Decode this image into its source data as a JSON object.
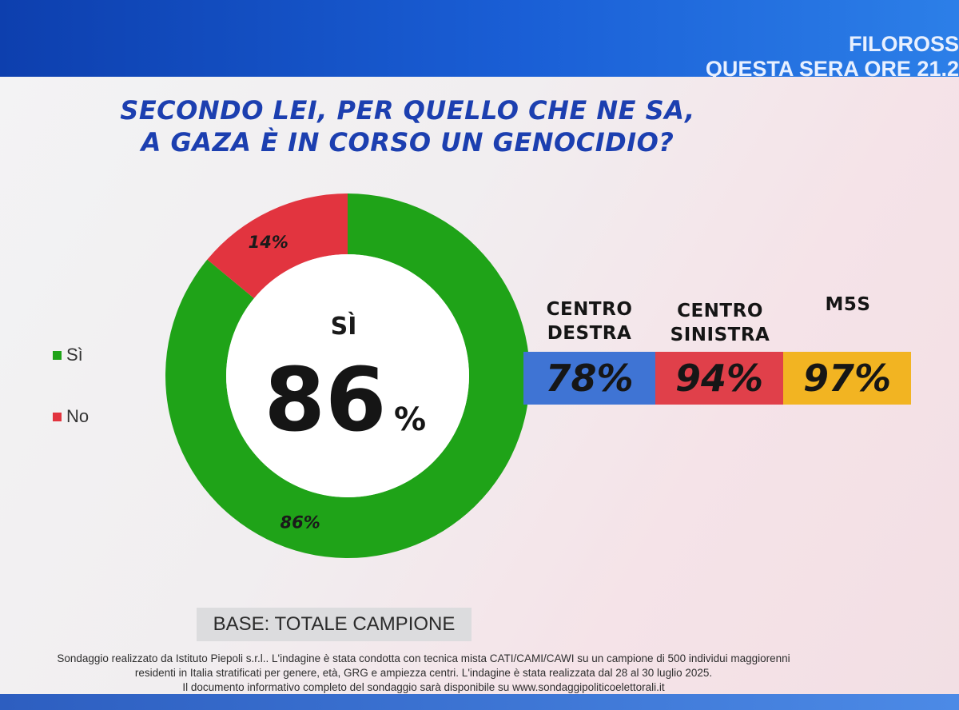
{
  "header": {
    "channel_line1": "FILOROSS",
    "channel_line2": "QUESTA SERA ORE 21.2"
  },
  "question": {
    "line1": "SECONDO LEI, PER QUELLO CHE NE SA,",
    "line2": "A GAZA È IN CORSO UN GENOCIDIO?"
  },
  "legend": [
    {
      "label": "Sì",
      "color": "#1fa318"
    },
    {
      "label": "No",
      "color": "#e2343f"
    }
  ],
  "center": {
    "label": "SÌ",
    "value": "86",
    "unit": "%"
  },
  "chart_data": {
    "type": "pie",
    "categories": [
      "Sì",
      "No"
    ],
    "values": [
      86,
      14
    ],
    "value_labels": [
      "86%",
      "14%"
    ],
    "colors": [
      "#1fa318",
      "#e2343f"
    ],
    "legend_placement": "left"
  },
  "groups": [
    {
      "line1": "CENTRO",
      "line2": "DESTRA",
      "value_label": "78%",
      "value": 78,
      "color": "#3f74d4"
    },
    {
      "line1": "CENTRO",
      "line2": "SINISTRA",
      "value_label": "94%",
      "value": 94,
      "color": "#e0404a"
    },
    {
      "line1": "",
      "line2": "M5S",
      "value_label": "97%",
      "value": 97,
      "color": "#f2b422"
    }
  ],
  "base": "BASE: TOTALE CAMPIONE",
  "source": {
    "line1": "Sondaggio realizzato da Istituto Piepoli s.r.l.. L'indagine è stata condotta con tecnica mista CATI/CAMI/CAWI su un campione di 500 individui maggiorenni",
    "line2": "residenti in Italia stratificati per genere, età, GRG e ampiezza centri. L'indagine è stata realizzata dal 28 al 30 luglio 2025.",
    "line3": "Il documento informativo completo del sondaggio sarà disponibile su www.sondaggipoliticoelettorali.it"
  }
}
